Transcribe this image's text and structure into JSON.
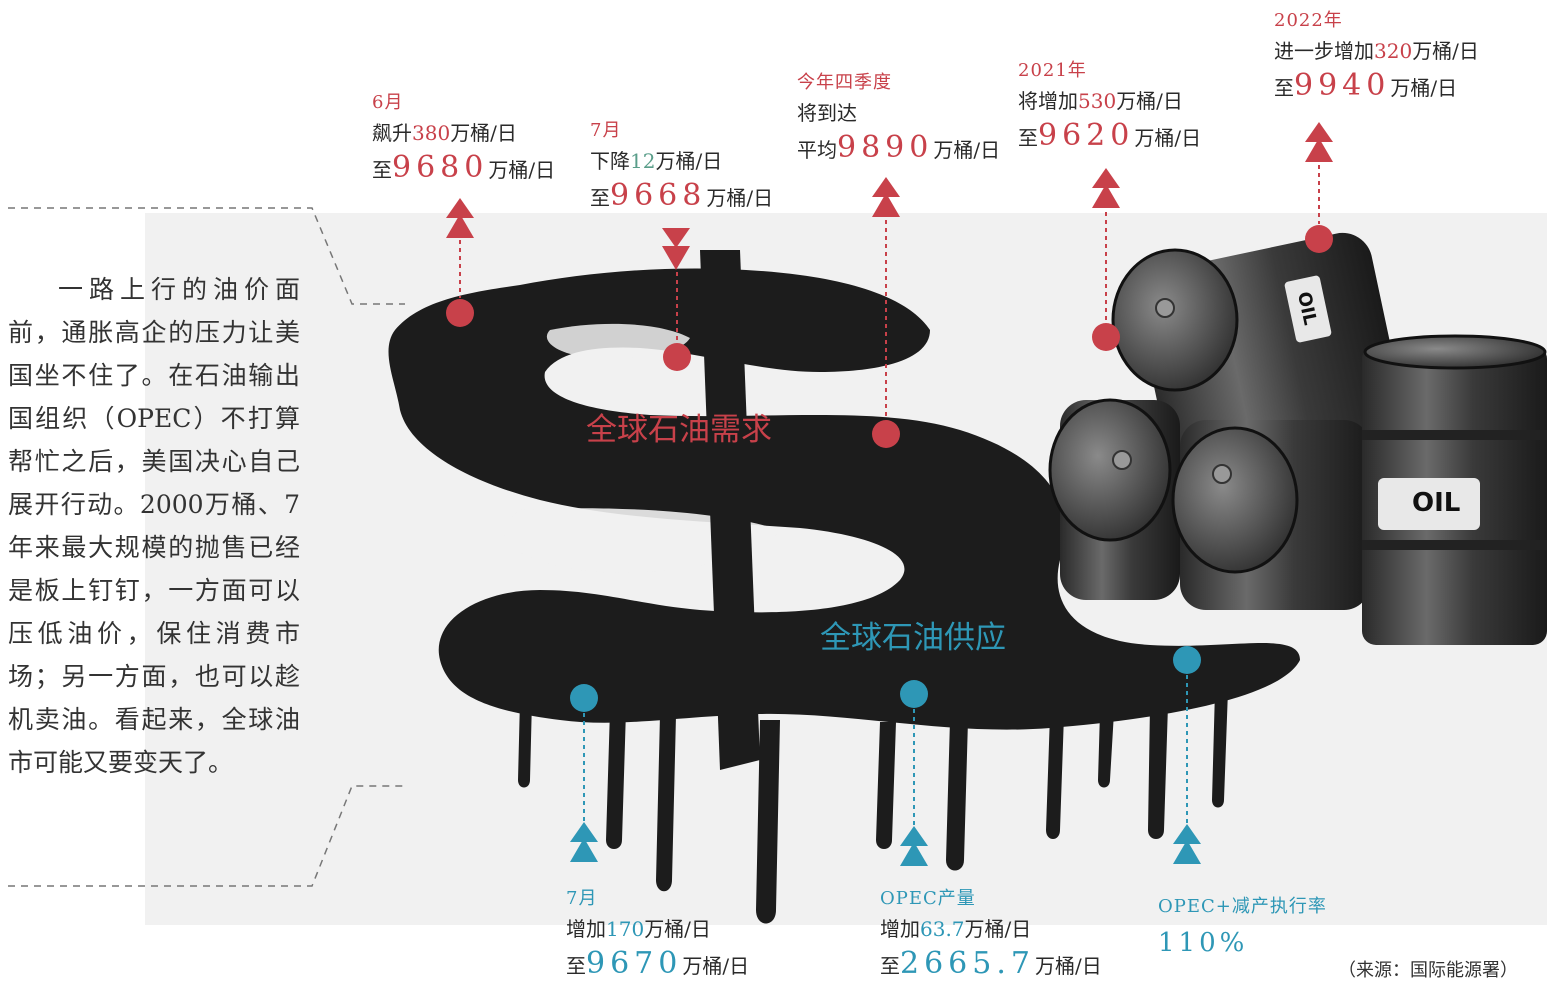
{
  "article": "一路上行的油价面前，通胀高企的压力让美国坐不住了。在石油输出国组织（OPEC）不打算帮忙之后，美国决心自己展开行动。2000万桶、7年来最大规模的抛售已经是板上钉钉，一方面可以压低油价，保住消费市场；另一方面，也可以趁机卖油。看起来，全球油市可能又要变天了。",
  "demand_title": "全球石油需求",
  "supply_title": "全球石油供应",
  "barrel_label": "OIL",
  "source": "（来源：国际能源署）",
  "demand_points": [
    {
      "period": "6月",
      "l1a": "飙升",
      "l1n": "380",
      "l1b": "万桶/日",
      "l2a": "至",
      "l2n": "9680",
      "l2b": "万桶/日",
      "direction": "up"
    },
    {
      "period": "7月",
      "l1a": "下降",
      "l1n": "12",
      "l1b": "万桶/日",
      "l2a": "至",
      "l2n": "9668",
      "l2b": "万桶/日",
      "direction": "down"
    },
    {
      "period": "今年四季度",
      "l1a": "将到达",
      "l1n": "",
      "l1b": "",
      "l2a": "平均",
      "l2n": "9890",
      "l2b": "万桶/日",
      "direction": "up"
    },
    {
      "period": "2021年",
      "l1a": "将增加",
      "l1n": "530",
      "l1b": "万桶/日",
      "l2a": "至",
      "l2n": "9620",
      "l2b": "万桶/日",
      "direction": "up"
    },
    {
      "period": "2022年",
      "l1a": "进一步增加",
      "l1n": "320",
      "l1b": "万桶/日",
      "l2a": "至",
      "l2n": "9940",
      "l2b": "万桶/日",
      "direction": "up"
    }
  ],
  "supply_points": [
    {
      "period": "7月",
      "l1a": "增加",
      "l1n": "170",
      "l1b": "万桶/日",
      "l2a": "至",
      "l2n": "9670",
      "l2b": "万桶/日",
      "direction": "up"
    },
    {
      "period": "OPEC产量",
      "l1a": "增加",
      "l1n": "63.7",
      "l1b": "万桶/日",
      "l2a": "至",
      "l2n": "2665.7",
      "l2b": "万桶/日",
      "direction": "up"
    },
    {
      "period": "OPEC+减产执行率",
      "l1a": "",
      "l1n": "",
      "l1b": "",
      "l2a": "",
      "l2n": "110%",
      "l2b": "",
      "direction": "up"
    }
  ],
  "colors": {
    "demand": "#c8414a",
    "supply": "#2e97b6",
    "oil": "#1c1c1c",
    "highlight": "#5a9e8a"
  }
}
